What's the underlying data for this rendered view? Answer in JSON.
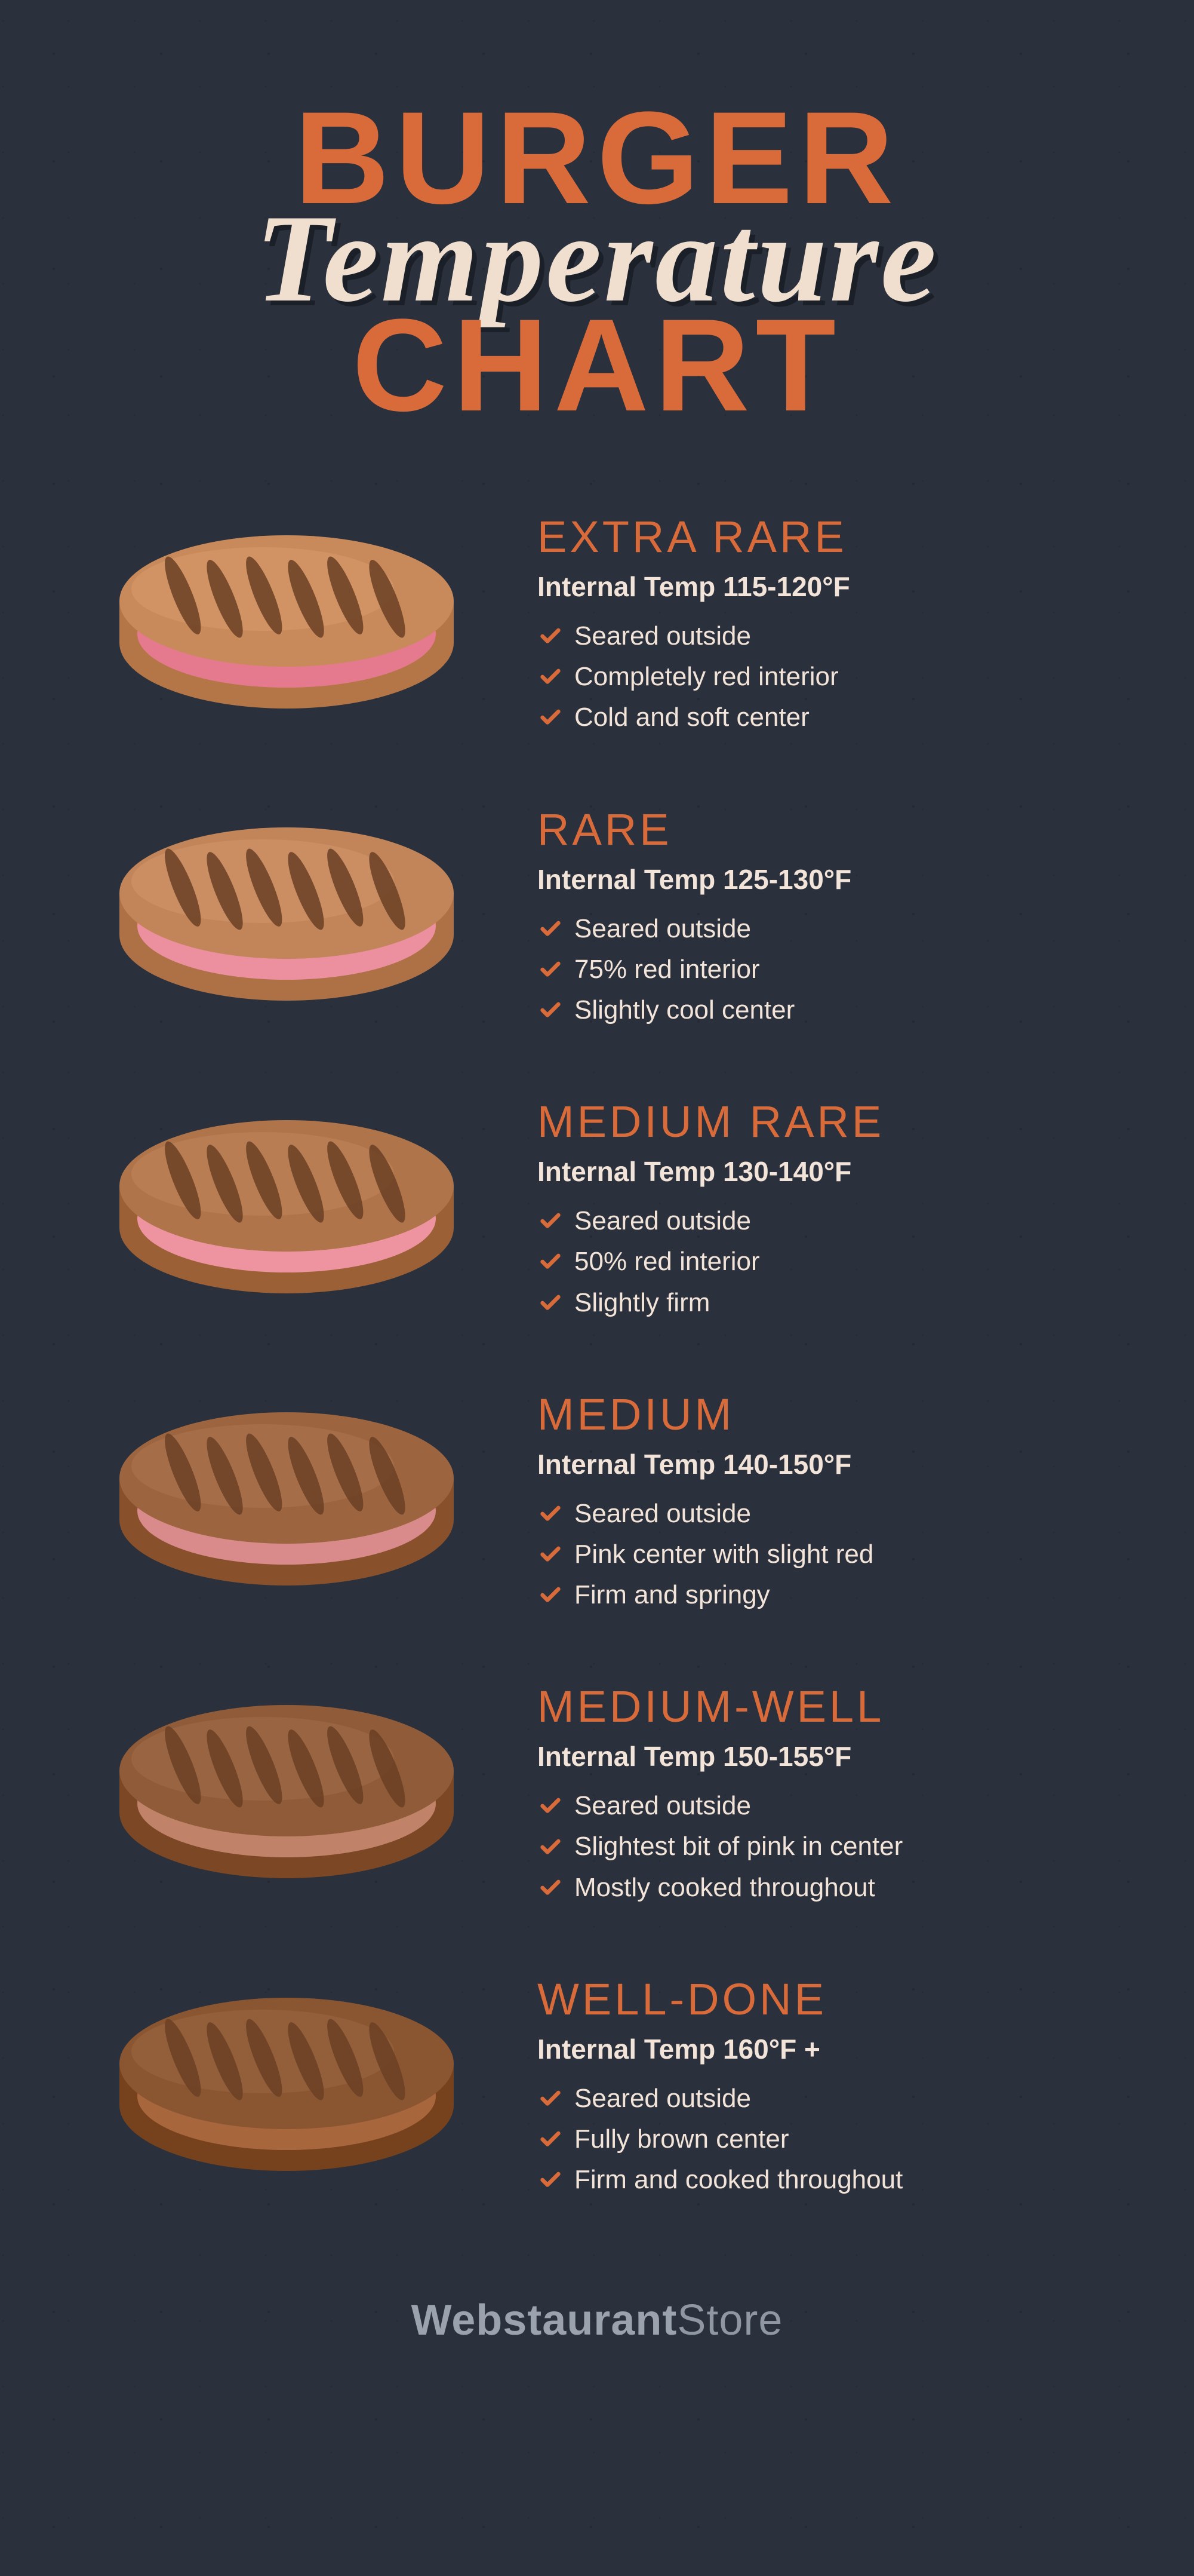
{
  "colors": {
    "background": "#2a303c",
    "accent_orange": "#d96b3a",
    "title_cream": "#f0dfce",
    "text_cream": "#f3e4d9",
    "check": "#d96b3a",
    "footer": "#8f97a3",
    "patty_top_light": "#c88a5a",
    "patty_top_med": "#a86a3f",
    "patty_top_dark": "#8a5330",
    "grill_mark": "#6b3f24",
    "rare_pink": "#e57a8f",
    "rare_light": "#f0a6b2",
    "med_pink": "#e68a8f",
    "medwell_pink": "#c78a7a",
    "well_brown": "#a8663d"
  },
  "title": {
    "line1": "BURGER",
    "line2": "Temperature",
    "line3": "CHART",
    "line1_color": "#d96b3a",
    "line2_color": "#f0dfce",
    "line3_color": "#d96b3a",
    "line1_fontsize": 220,
    "line2_fontsize": 210,
    "line3_fontsize": 220
  },
  "levels": [
    {
      "name": "EXTRA RARE",
      "temp": "Internal Temp 115-120°F",
      "bullets": [
        "Seared outside",
        "Completely red interior",
        "Cold and soft center"
      ],
      "top_color": "#c88a5a",
      "interior_color": "#e57a8f",
      "interior_height": 0.55
    },
    {
      "name": "RARE",
      "temp": "Internal Temp 125-130°F",
      "bullets": [
        "Seared outside",
        "75% red interior",
        "Slightly cool center"
      ],
      "top_color": "#c2855a",
      "interior_color": "#ec8f9f",
      "interior_height": 0.45
    },
    {
      "name": "MEDIUM RARE",
      "temp": "Internal Temp 130-140°F",
      "bullets": [
        "Seared outside",
        "50% red interior",
        "Slightly firm"
      ],
      "top_color": "#b0744a",
      "interior_color": "#ed94a0",
      "interior_height": 0.35
    },
    {
      "name": "MEDIUM",
      "temp": "Internal Temp 140-150°F",
      "bullets": [
        "Seared outside",
        "Pink center with slight red",
        "Firm and springy"
      ],
      "top_color": "#9c6540",
      "interior_color": "#d98a8a",
      "interior_height": 0.28
    },
    {
      "name": "MEDIUM-WELL",
      "temp": "Internal Temp 150-155°F",
      "bullets": [
        "Seared outside",
        "Slightest bit of pink in center",
        "Mostly cooked throughout"
      ],
      "top_color": "#8f5b38",
      "interior_color": "#c08268",
      "interior_height": 0.22
    },
    {
      "name": "WELL-DONE",
      "temp": "Internal Temp 160°F +",
      "bullets": [
        "Seared outside",
        "Fully brown center",
        "Firm and cooked throughout"
      ],
      "top_color": "#8a5632",
      "interior_color": "#a8663d",
      "interior_height": 0.18
    }
  ],
  "footer": {
    "part1": "Webstaurant",
    "part2": "Store"
  }
}
